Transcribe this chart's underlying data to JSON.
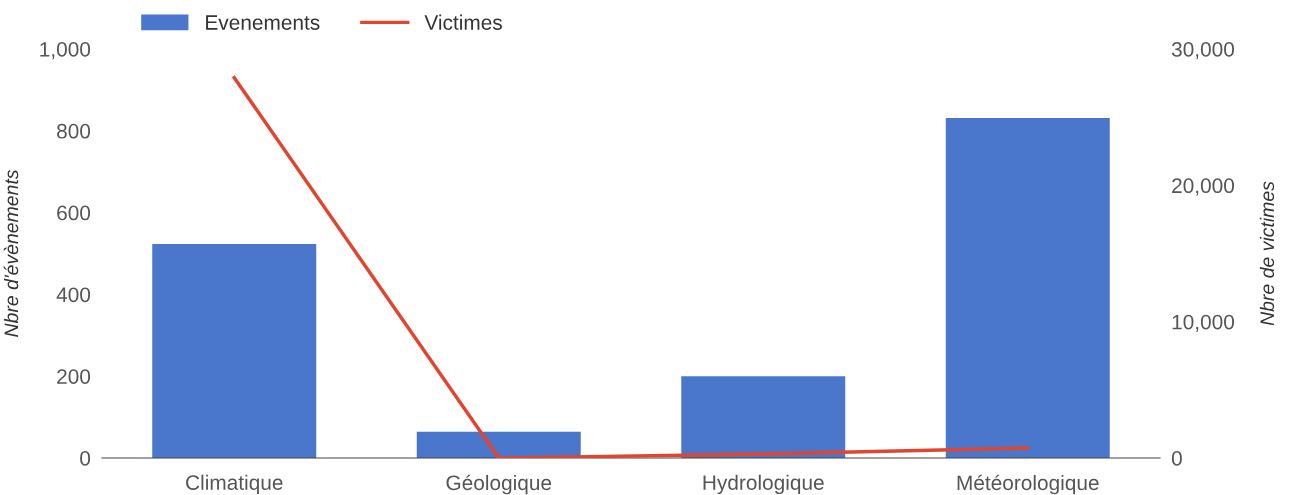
{
  "chart_data": {
    "type": "bar",
    "categories": [
      "Climatique",
      "Géologique",
      "Hydrologique",
      "Météorologique"
    ],
    "series": [
      {
        "name": "Evenements",
        "color": "#4a76cc",
        "values": [
          523,
          64,
          200,
          831
        ]
      },
      {
        "name": "Victimes",
        "type": "line",
        "axis": "y2",
        "color": "#e0462f",
        "values": [
          27900,
          0,
          290,
          730
        ]
      }
    ],
    "ylabel": "Nbre d'évènements",
    "y2label": "Nbre de victimes",
    "ylim": [
      0,
      1000
    ],
    "yticks": [
      0,
      200,
      400,
      600,
      800,
      {
        "value": 1000,
        "label": "1,000"
      }
    ],
    "y2lim": [
      0,
      30000
    ],
    "y2ticks": [
      0,
      {
        "value": 10000,
        "label": "10,000"
      },
      {
        "value": 20000,
        "label": "20,000"
      },
      {
        "value": 30000,
        "label": "30,000"
      }
    ],
    "grid": false,
    "legend": "top left",
    "marker": "none",
    "line_style": "solid"
  }
}
